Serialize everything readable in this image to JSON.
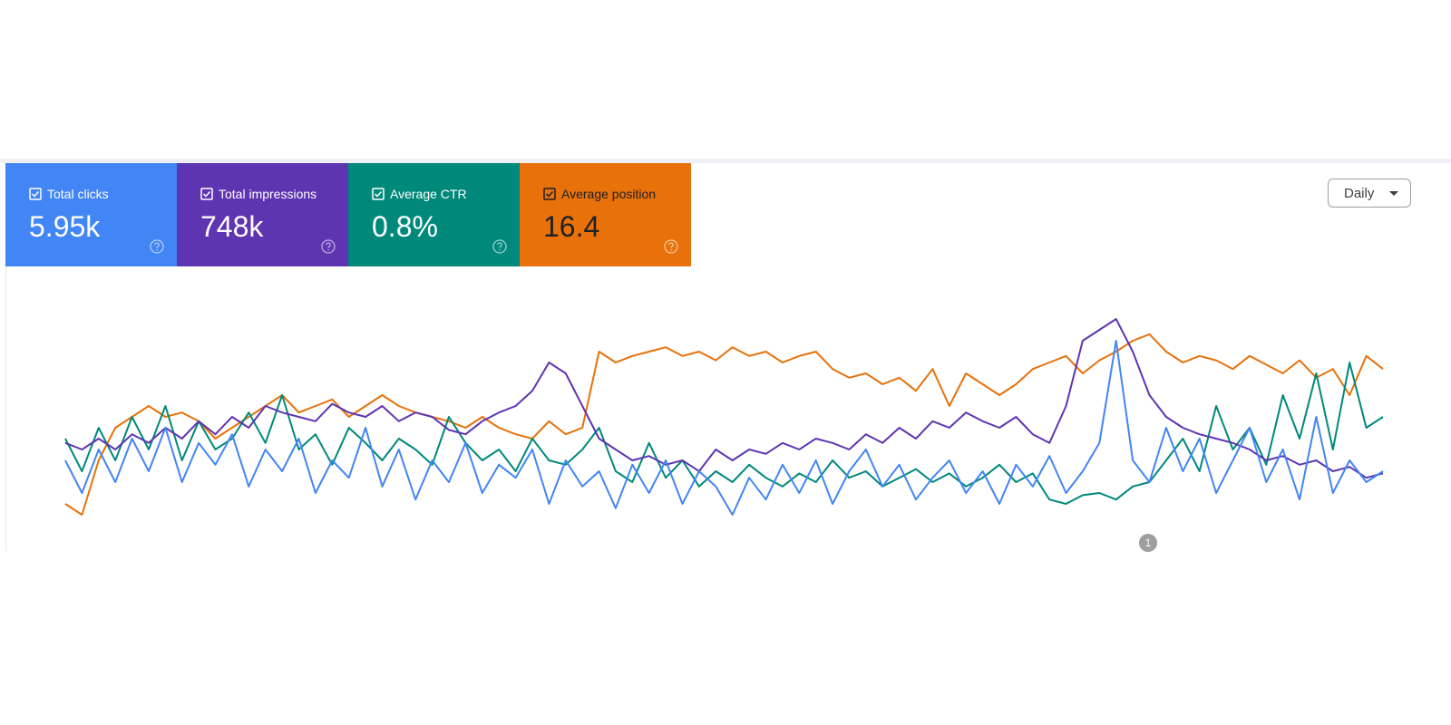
{
  "dropdown": "Daily",
  "annotation": "1",
  "chart_data": {
    "type": "line",
    "ylim": [
      0,
      100
    ],
    "series": [
      {
        "name": "Total clicks",
        "total": "5.95k",
        "color": "#4285f4",
        "values": [
          30,
          15,
          35,
          20,
          40,
          25,
          45,
          20,
          38,
          28,
          42,
          18,
          35,
          25,
          40,
          15,
          30,
          22,
          45,
          18,
          35,
          12,
          30,
          20,
          38,
          15,
          28,
          22,
          35,
          10,
          30,
          18,
          25,
          8,
          28,
          15,
          30,
          10,
          25,
          18,
          5,
          22,
          12,
          28,
          15,
          30,
          10,
          25,
          35,
          18,
          28,
          12,
          22,
          30,
          15,
          25,
          10,
          28,
          18,
          32,
          15,
          25,
          38,
          85,
          30,
          20,
          45,
          25,
          40,
          15,
          30,
          45,
          20,
          35,
          12,
          50,
          15,
          30,
          20,
          25
        ]
      },
      {
        "name": "Total impressions",
        "total": "748k",
        "color": "#5e35b1",
        "values": [
          38,
          35,
          40,
          35,
          42,
          38,
          45,
          40,
          48,
          42,
          50,
          45,
          55,
          52,
          50,
          48,
          56,
          52,
          50,
          55,
          48,
          52,
          50,
          44,
          42,
          48,
          52,
          55,
          62,
          75,
          70,
          55,
          40,
          35,
          30,
          32,
          28,
          30,
          25,
          35,
          30,
          35,
          33,
          38,
          35,
          40,
          38,
          35,
          42,
          38,
          45,
          40,
          48,
          45,
          52,
          48,
          45,
          50,
          42,
          38,
          55,
          85,
          90,
          95,
          80,
          60,
          50,
          45,
          42,
          40,
          38,
          35,
          30,
          32,
          28,
          30,
          25,
          27,
          22,
          24
        ]
      },
      {
        "name": "Average CTR",
        "total": "0.8%",
        "color": "#00897b",
        "values": [
          40,
          25,
          45,
          30,
          50,
          35,
          55,
          30,
          48,
          35,
          40,
          52,
          38,
          60,
          35,
          42,
          28,
          45,
          38,
          30,
          40,
          35,
          28,
          50,
          38,
          30,
          35,
          25,
          40,
          30,
          28,
          35,
          45,
          25,
          20,
          38,
          22,
          30,
          18,
          25,
          20,
          28,
          22,
          18,
          24,
          20,
          30,
          22,
          25,
          18,
          22,
          26,
          20,
          24,
          18,
          22,
          28,
          20,
          24,
          12,
          10,
          14,
          15,
          12,
          18,
          20,
          30,
          40,
          25,
          55,
          35,
          45,
          28,
          60,
          40,
          70,
          35,
          75,
          45,
          50
        ]
      },
      {
        "name": "Average position",
        "total": "16.4",
        "color": "#e8710a",
        "values": [
          10,
          5,
          30,
          45,
          50,
          55,
          50,
          52,
          48,
          40,
          45,
          50,
          55,
          60,
          52,
          55,
          58,
          50,
          55,
          60,
          55,
          52,
          50,
          48,
          45,
          50,
          45,
          42,
          40,
          48,
          42,
          45,
          80,
          75,
          78,
          80,
          82,
          78,
          80,
          76,
          82,
          78,
          80,
          75,
          78,
          80,
          72,
          68,
          70,
          65,
          68,
          62,
          72,
          55,
          70,
          65,
          60,
          65,
          72,
          75,
          78,
          70,
          76,
          80,
          85,
          88,
          80,
          75,
          78,
          76,
          72,
          78,
          74,
          70,
          76,
          68,
          72,
          60,
          78,
          72
        ]
      }
    ]
  }
}
